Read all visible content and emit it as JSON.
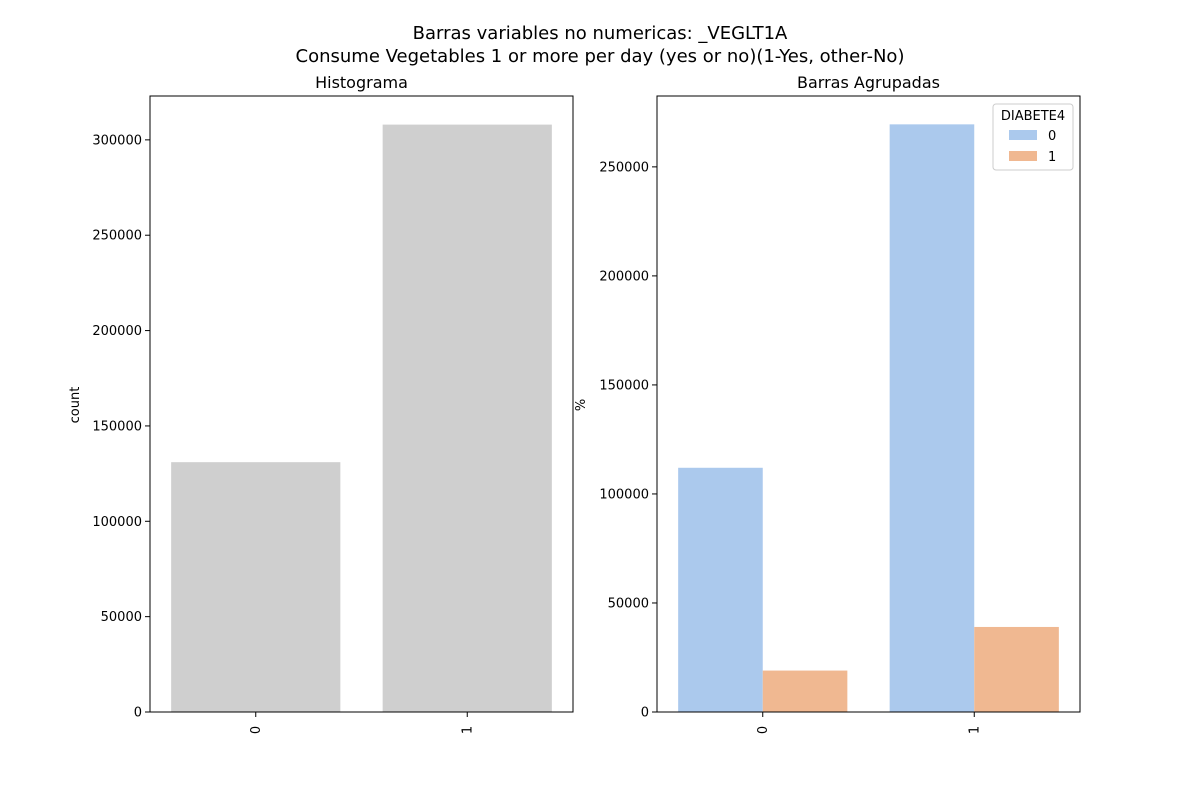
{
  "figure": {
    "title_line1": "Barras variables no numericas: _VEGLT1A",
    "title_line2": "Consume Vegetables 1 or more per day (yes or no)(1-Yes, other-No)"
  },
  "chart_data": [
    {
      "type": "bar",
      "title": "Histograma",
      "xlabel": "",
      "ylabel": "count",
      "categories": [
        "0",
        "1"
      ],
      "values": [
        131000,
        308000
      ],
      "ylim": [
        0,
        323000
      ],
      "yticks": [
        0,
        50000,
        100000,
        150000,
        200000,
        250000,
        300000
      ],
      "grid": false,
      "color": "#cfcfcf"
    },
    {
      "type": "bar",
      "title": "Barras Agrupadas",
      "xlabel": "",
      "ylabel": "%",
      "categories": [
        "0",
        "1"
      ],
      "series": [
        {
          "name": "0",
          "values": [
            112000,
            269500
          ],
          "color": "#abc9ed"
        },
        {
          "name": "1",
          "values": [
            19000,
            39000
          ],
          "color": "#f0b891"
        }
      ],
      "ylim": [
        0,
        282500
      ],
      "yticks": [
        0,
        50000,
        100000,
        150000,
        200000,
        250000
      ],
      "grid": false,
      "legend": {
        "title": "DIABETE4",
        "placement": "top-right"
      }
    }
  ]
}
